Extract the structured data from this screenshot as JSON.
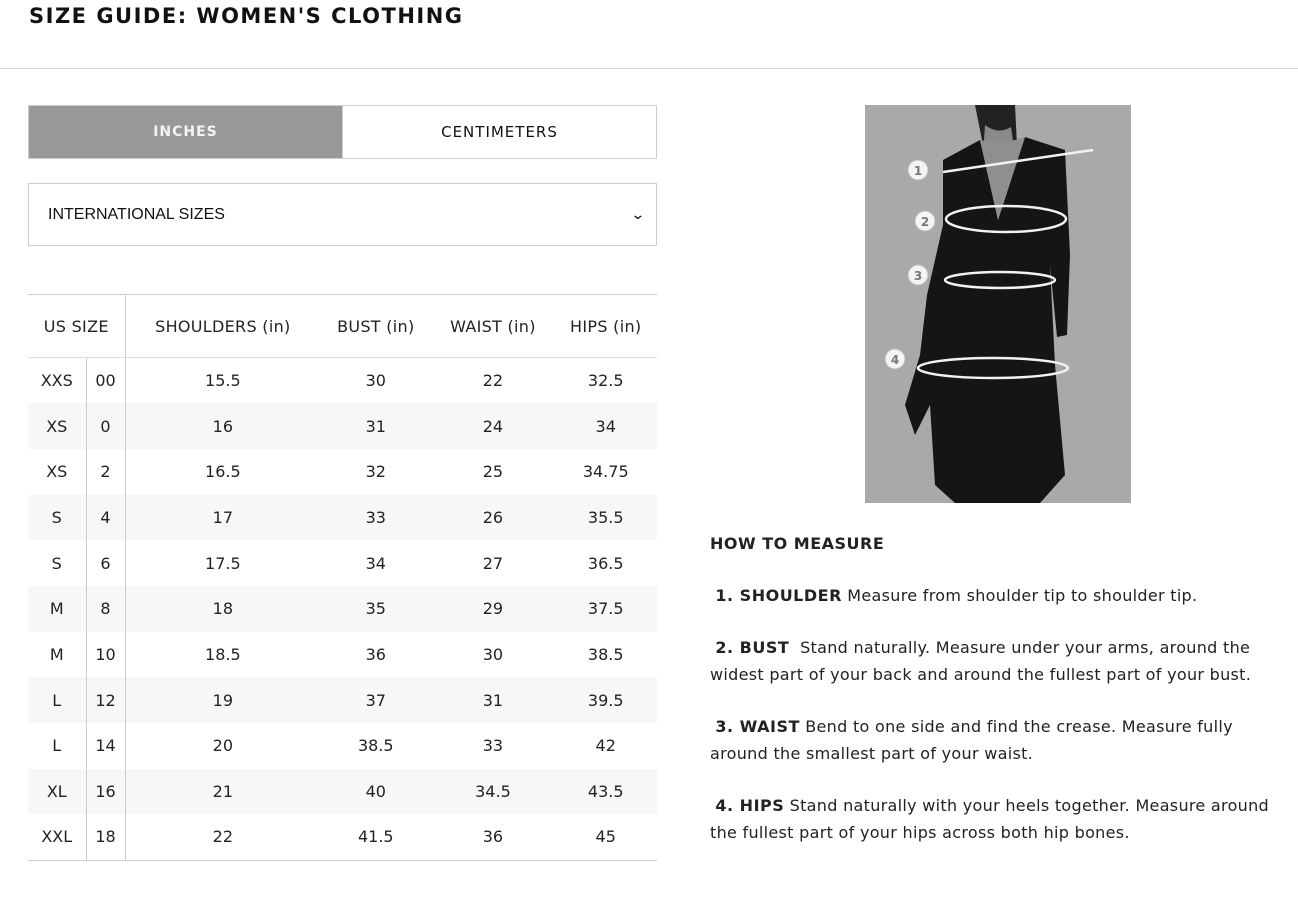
{
  "title": "SIZE GUIDE: WOMEN'S CLOTHING",
  "units": {
    "inches": "INCHES",
    "centimeters": "CENTIMETERS",
    "selected": "INCHES"
  },
  "size_system": {
    "selected": "INTERNATIONAL SIZES",
    "icon": "chevron-down-icon"
  },
  "table": {
    "headers": [
      "US SIZE",
      "SHOULDERS (in)",
      "BUST (in)",
      "WAIST (in)",
      "HIPS (in)"
    ],
    "rows": [
      [
        "XXS",
        "00",
        "15.5",
        "30",
        "22",
        "32.5"
      ],
      [
        "XS",
        "0",
        "16",
        "31",
        "24",
        "34"
      ],
      [
        "XS",
        "2",
        "16.5",
        "32",
        "25",
        "34.75"
      ],
      [
        "S",
        "4",
        "17",
        "33",
        "26",
        "35.5"
      ],
      [
        "S",
        "6",
        "17.5",
        "34",
        "27",
        "36.5"
      ],
      [
        "M",
        "8",
        "18",
        "35",
        "29",
        "37.5"
      ],
      [
        "M",
        "10",
        "18.5",
        "36",
        "30",
        "38.5"
      ],
      [
        "L",
        "12",
        "19",
        "37",
        "31",
        "39.5"
      ],
      [
        "L",
        "14",
        "20",
        "38.5",
        "33",
        "42"
      ],
      [
        "XL",
        "16",
        "21",
        "40",
        "34.5",
        "43.5"
      ],
      [
        "XXL",
        "18",
        "22",
        "41.5",
        "36",
        "45"
      ]
    ]
  },
  "image": {
    "markers": [
      "1",
      "2",
      "3",
      "4"
    ]
  },
  "how_to": {
    "heading": "HOW TO MEASURE",
    "items": [
      {
        "label": "1. SHOULDER",
        "text": "Measure from shoulder tip to shoulder tip."
      },
      {
        "label": "2. BUST",
        "text": "Stand naturally. Measure under your arms, around the widest part of your back and around the fullest part of your bust."
      },
      {
        "label": "3. WAIST",
        "text": "Bend to one side and find the crease. Measure fully around the smallest part of your waist."
      },
      {
        "label": "4. HIPS",
        "text": "Stand naturally with your heels together. Measure around the fullest part of your hips across both hip bones."
      }
    ]
  }
}
